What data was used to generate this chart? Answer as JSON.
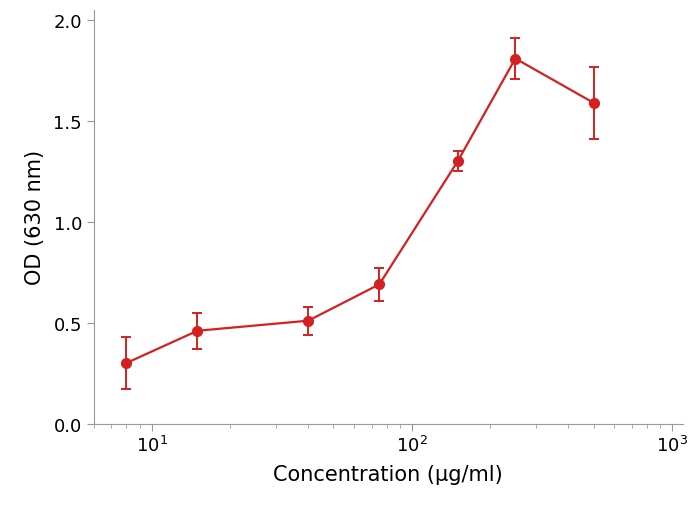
{
  "x": [
    8,
    15,
    40,
    75,
    150,
    250,
    500
  ],
  "y": [
    0.3,
    0.46,
    0.51,
    0.69,
    1.3,
    1.81,
    1.59
  ],
  "yerr": [
    0.13,
    0.09,
    0.07,
    0.08,
    0.05,
    0.1,
    0.18
  ],
  "color": "#d42020",
  "xlabel": "Concentration (μg/ml)",
  "ylabel": "OD (630 nm)",
  "xlim": [
    6,
    1100
  ],
  "ylim": [
    0.0,
    2.05
  ],
  "yticks": [
    0.0,
    0.5,
    1.0,
    1.5,
    2.0
  ],
  "xticks": [
    10,
    100,
    1000
  ],
  "marker": "o",
  "markersize": 7,
  "linewidth": 1.6,
  "capsize": 3.5,
  "elinewidth": 1.4,
  "xlabel_fontsize": 15,
  "ylabel_fontsize": 15,
  "tick_fontsize": 13,
  "background_color": "#ffffff",
  "spine_color": "#999999"
}
